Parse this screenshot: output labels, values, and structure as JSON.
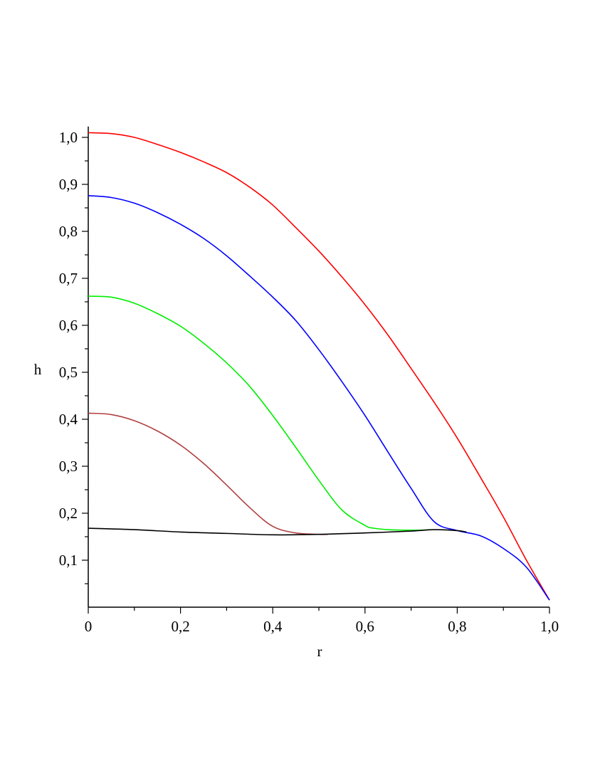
{
  "chart_data": {
    "type": "line",
    "xlabel": "r",
    "ylabel": "h",
    "xlim": [
      0,
      1
    ],
    "ylim": [
      0,
      1.02
    ],
    "xticks": [
      "0",
      "0,2",
      "0,4",
      "0,6",
      "0,8",
      "1,0"
    ],
    "yticks": [
      "0,1",
      "0,2",
      "0,3",
      "0,4",
      "0,5",
      "0,6",
      "0,7",
      "0,8",
      "0,9",
      "1,0"
    ],
    "grid": false,
    "legend": "none",
    "series": [
      {
        "color": "#ff0000",
        "x": [
          0,
          0.05,
          0.1,
          0.15,
          0.2,
          0.25,
          0.3,
          0.35,
          0.4,
          0.45,
          0.5,
          0.55,
          0.6,
          0.65,
          0.7,
          0.75,
          0.8,
          0.85,
          0.9,
          0.95,
          1.0
        ],
        "y": [
          1.01,
          1.008,
          1.0,
          0.985,
          0.968,
          0.948,
          0.925,
          0.894,
          0.856,
          0.808,
          0.758,
          0.703,
          0.644,
          0.579,
          0.508,
          0.436,
          0.36,
          0.277,
          0.192,
          0.1,
          0.015
        ]
      },
      {
        "color": "#0000ff",
        "x": [
          0,
          0.05,
          0.1,
          0.15,
          0.2,
          0.25,
          0.3,
          0.35,
          0.4,
          0.45,
          0.5,
          0.55,
          0.6,
          0.65,
          0.7,
          0.75,
          0.8,
          0.85,
          0.9,
          0.95,
          1.0
        ],
        "y": [
          0.876,
          0.872,
          0.86,
          0.84,
          0.815,
          0.785,
          0.748,
          0.705,
          0.66,
          0.61,
          0.548,
          0.48,
          0.408,
          0.33,
          0.253,
          0.182,
          0.163,
          0.152,
          0.125,
          0.085,
          0.015
        ]
      },
      {
        "color": "#00ee00",
        "x": [
          0,
          0.05,
          0.1,
          0.15,
          0.2,
          0.25,
          0.3,
          0.35,
          0.4,
          0.45,
          0.5,
          0.55,
          0.6,
          0.62,
          0.65,
          0.68,
          0.72,
          0.74
        ],
        "y": [
          0.662,
          0.66,
          0.647,
          0.625,
          0.598,
          0.562,
          0.52,
          0.47,
          0.408,
          0.34,
          0.27,
          0.207,
          0.174,
          0.168,
          0.165,
          0.164,
          0.164,
          0.165
        ]
      },
      {
        "color": "#b04040",
        "x": [
          0,
          0.05,
          0.1,
          0.15,
          0.2,
          0.25,
          0.3,
          0.35,
          0.4,
          0.45,
          0.5,
          0.52
        ],
        "y": [
          0.413,
          0.41,
          0.397,
          0.375,
          0.345,
          0.306,
          0.26,
          0.212,
          0.172,
          0.158,
          0.155,
          0.155
        ]
      },
      {
        "color": "#000000",
        "x": [
          0,
          0.1,
          0.2,
          0.3,
          0.4,
          0.5,
          0.6,
          0.7,
          0.75,
          0.8,
          0.82
        ],
        "y": [
          0.168,
          0.165,
          0.16,
          0.157,
          0.154,
          0.155,
          0.158,
          0.162,
          0.165,
          0.163,
          0.16
        ]
      }
    ]
  }
}
